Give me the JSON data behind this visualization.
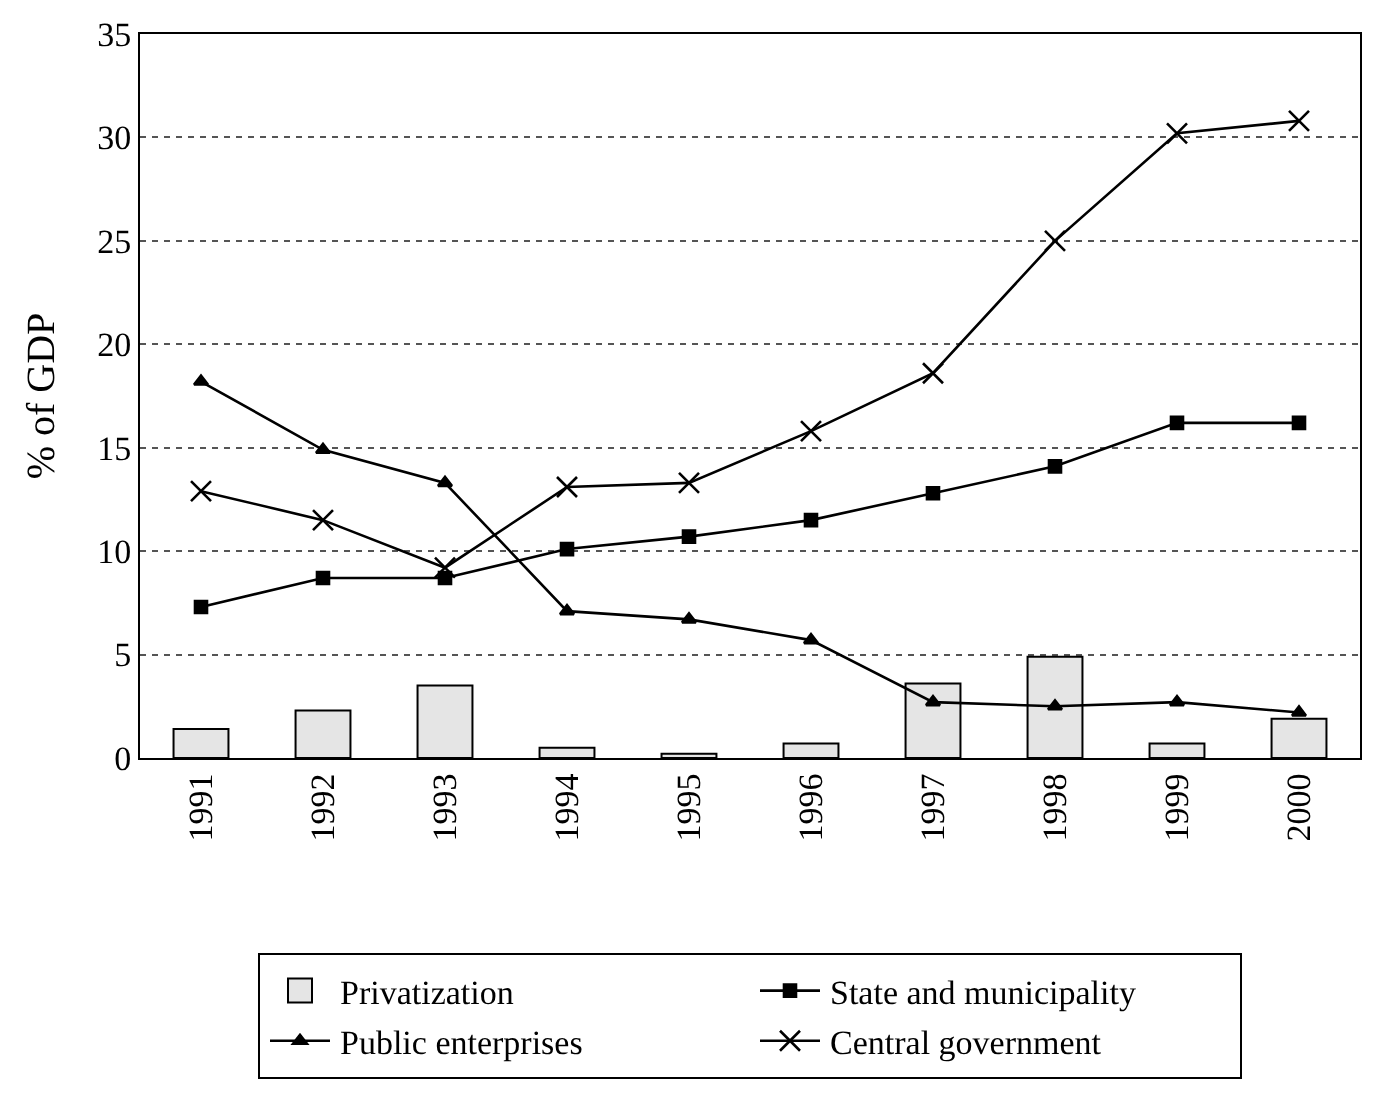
{
  "chart_data": {
    "type": "line",
    "ylabel": "% of GDP",
    "categories": [
      "1991",
      "1992",
      "1993",
      "1994",
      "1995",
      "1996",
      "1997",
      "1998",
      "1999",
      "2000"
    ],
    "series": [
      {
        "name": "Privatization",
        "type": "bar",
        "color": "#e5e5e5",
        "values": [
          1.4,
          2.3,
          3.5,
          0.5,
          0.2,
          0.7,
          3.6,
          4.9,
          0.7,
          1.9
        ]
      },
      {
        "name": "State and municipality",
        "color": "#000000",
        "marker": "square",
        "values": [
          7.3,
          8.7,
          8.7,
          10.1,
          10.7,
          11.5,
          12.8,
          14.1,
          16.2,
          16.2
        ]
      },
      {
        "name": "Public enterprises",
        "color": "#000000",
        "marker": "triangle",
        "values": [
          18.2,
          14.9,
          13.3,
          7.1,
          6.7,
          5.7,
          2.7,
          2.5,
          2.7,
          2.2
        ]
      },
      {
        "name": "Central government",
        "color": "#000000",
        "marker": "cross",
        "values": [
          12.9,
          11.5,
          9.2,
          13.1,
          13.3,
          15.8,
          18.6,
          25.0,
          30.2,
          30.8
        ]
      }
    ],
    "ylim": [
      0,
      35
    ],
    "yticks": [
      0,
      5,
      10,
      15,
      20,
      25,
      30,
      35
    ],
    "grid": "y",
    "legend": "bottom",
    "line_style": "solid"
  }
}
